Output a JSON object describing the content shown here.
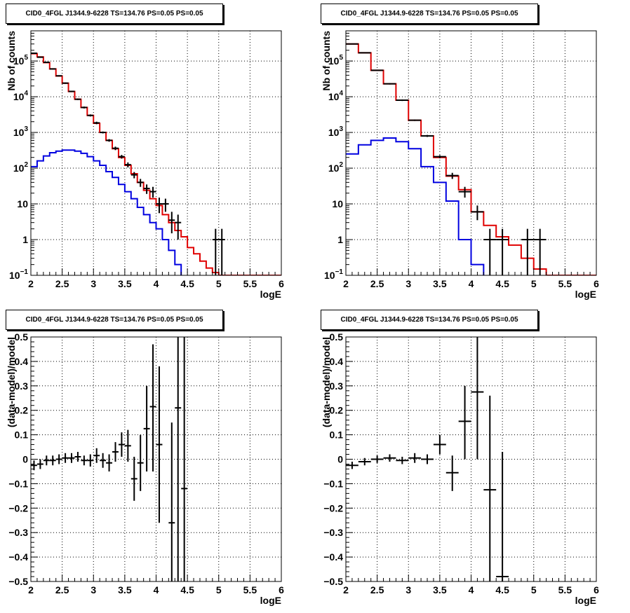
{
  "chart_data": [
    {
      "type": "line",
      "title": "CID0_4FGL J1344.9-6228 TS=134.76 PS=0.05 PS=0.05",
      "xlabel": "logE",
      "ylabel": "Nb of counts",
      "xlim": [
        2,
        6
      ],
      "ylim": [
        0.1,
        700000
      ],
      "ylog": true,
      "grid": true,
      "x_ticks": [
        "2",
        "2.5",
        "3",
        "3.5",
        "4",
        "4.5",
        "5",
        "5.5",
        "6"
      ],
      "y_ticks": [
        {
          "v": 0.1,
          "base": "10",
          "exp": "−1"
        },
        {
          "v": 1,
          "label": "1"
        },
        {
          "v": 10,
          "label": "10"
        },
        {
          "v": 100,
          "base": "10",
          "exp": "2"
        },
        {
          "v": 1000,
          "base": "10",
          "exp": "3"
        },
        {
          "v": 10000,
          "base": "10",
          "exp": "4"
        },
        {
          "v": 100000,
          "base": "10",
          "exp": "5"
        }
      ],
      "bin_edges": [
        2.0,
        2.1,
        2.2,
        2.3,
        2.4,
        2.5,
        2.6,
        2.7,
        2.8,
        2.9,
        3.0,
        3.1,
        3.2,
        3.3,
        3.4,
        3.5,
        3.6,
        3.7,
        3.8,
        3.9,
        4.0,
        4.1,
        4.2,
        4.3,
        4.4,
        4.5,
        4.6,
        4.7,
        4.8,
        4.9,
        5.0,
        5.1,
        5.2,
        5.3,
        5.4,
        5.5,
        5.6,
        5.7,
        5.8,
        5.9,
        6.0
      ],
      "series": [
        {
          "color": "#e00000",
          "style": "step",
          "values": [
            160000,
            130000,
            90000,
            60000,
            38000,
            24000,
            14000,
            8500,
            5000,
            3000,
            1800,
            1000,
            600,
            350,
            200,
            120,
            70,
            40,
            24,
            14,
            9,
            5,
            3,
            1.8,
            1.2,
            0.6,
            0.4,
            0.25,
            0.16,
            0.12,
            0.1,
            0.1,
            0.1,
            0.1,
            0.1,
            0.1,
            0.1,
            0.1,
            0.1,
            0.1
          ]
        },
        {
          "color": "#0000e0",
          "style": "step",
          "values": [
            110,
            160,
            220,
            270,
            300,
            320,
            320,
            300,
            260,
            210,
            160,
            120,
            80,
            55,
            35,
            22,
            14,
            8,
            5,
            3,
            2,
            1,
            0.5,
            0.2,
            0.08,
            0.05,
            0.05,
            0.05,
            0.05,
            0.05,
            0.05,
            0.05,
            0.05,
            0.05,
            0.05,
            0.05,
            0.05,
            0.05,
            0.05,
            0.05
          ]
        },
        {
          "color": "#000000",
          "style": "points",
          "points": [
            {
              "x": 2.05,
              "y": 165000,
              "lo": 160000,
              "hi": 170000
            },
            {
              "x": 2.15,
              "y": 128000,
              "lo": 124000,
              "hi": 132000
            },
            {
              "x": 2.25,
              "y": 92000,
              "lo": 89000,
              "hi": 95000
            },
            {
              "x": 2.35,
              "y": 60000,
              "lo": 58000,
              "hi": 62000
            },
            {
              "x": 2.45,
              "y": 38500,
              "lo": 37000,
              "hi": 40000
            },
            {
              "x": 2.55,
              "y": 24000,
              "lo": 23000,
              "hi": 25000
            },
            {
              "x": 2.65,
              "y": 14100,
              "lo": 13500,
              "hi": 14700
            },
            {
              "x": 2.75,
              "y": 8500,
              "lo": 8100,
              "hi": 8900
            },
            {
              "x": 2.85,
              "y": 5000,
              "lo": 4700,
              "hi": 5300
            },
            {
              "x": 2.95,
              "y": 3000,
              "lo": 2800,
              "hi": 3200
            },
            {
              "x": 3.05,
              "y": 1850,
              "lo": 1700,
              "hi": 2000
            },
            {
              "x": 3.15,
              "y": 1000,
              "lo": 940,
              "hi": 1060
            },
            {
              "x": 3.25,
              "y": 600,
              "lo": 550,
              "hi": 650
            },
            {
              "x": 3.35,
              "y": 360,
              "lo": 320,
              "hi": 400
            },
            {
              "x": 3.45,
              "y": 210,
              "lo": 185,
              "hi": 235
            },
            {
              "x": 3.55,
              "y": 125,
              "lo": 105,
              "hi": 145
            },
            {
              "x": 3.65,
              "y": 65,
              "lo": 52,
              "hi": 78
            },
            {
              "x": 3.75,
              "y": 40,
              "lo": 30,
              "hi": 50
            },
            {
              "x": 3.85,
              "y": 27,
              "lo": 19,
              "hi": 35
            },
            {
              "x": 3.95,
              "y": 22,
              "lo": 15,
              "hi": 30
            },
            {
              "x": 4.05,
              "y": 10,
              "lo": 5.5,
              "hi": 15
            },
            {
              "x": 4.15,
              "y": 10,
              "lo": 6,
              "hi": 14
            },
            {
              "x": 4.25,
              "y": 3.5,
              "lo": 1.5,
              "hi": 6
            },
            {
              "x": 4.35,
              "y": 3,
              "lo": 1,
              "hi": 5
            },
            {
              "x": 4.95,
              "y": 1,
              "lo": 0.1,
              "hi": 2
            },
            {
              "x": 5.05,
              "y": 1,
              "lo": 0.1,
              "hi": 2
            }
          ]
        }
      ]
    },
    {
      "type": "line",
      "title": "CID0_4FGL J1344.9-6228 TS=134.76 PS=0.05 PS=0.05",
      "xlabel": "logE",
      "ylabel": "Nb of counts",
      "xlim": [
        2,
        6
      ],
      "ylim": [
        0.1,
        700000
      ],
      "ylog": true,
      "grid": true,
      "x_ticks": [
        "2",
        "2.5",
        "3",
        "3.5",
        "4",
        "4.5",
        "5",
        "5.5",
        "6"
      ],
      "y_ticks": [
        {
          "v": 0.1,
          "base": "10",
          "exp": "−1"
        },
        {
          "v": 1,
          "label": "1"
        },
        {
          "v": 10,
          "label": "10"
        },
        {
          "v": 100,
          "base": "10",
          "exp": "2"
        },
        {
          "v": 1000,
          "base": "10",
          "exp": "3"
        },
        {
          "v": 10000,
          "base": "10",
          "exp": "4"
        },
        {
          "v": 100000,
          "base": "10",
          "exp": "5"
        }
      ],
      "bin_edges": [
        2.0,
        2.2,
        2.4,
        2.6,
        2.8,
        3.0,
        3.2,
        3.4,
        3.6,
        3.8,
        4.0,
        4.2,
        4.4,
        4.6,
        4.8,
        5.0,
        5.2,
        5.4,
        5.6,
        5.8,
        6.0
      ],
      "series": [
        {
          "color": "#e00000",
          "style": "step",
          "values": [
            300000,
            170000,
            55000,
            23000,
            8000,
            2200,
            800,
            200,
            60,
            25,
            6,
            2.5,
            1.2,
            0.7,
            0.3,
            0.15,
            0.1,
            0.1,
            0.1,
            0.1
          ]
        },
        {
          "color": "#0000e0",
          "style": "step",
          "values": [
            250,
            450,
            600,
            700,
            550,
            350,
            110,
            40,
            12,
            1,
            0.2,
            0.05,
            0.05,
            0.05,
            0.05,
            0.05,
            0.05,
            0.05,
            0.05,
            0.05
          ]
        },
        {
          "color": "#000000",
          "style": "points",
          "points": [
            {
              "x": 2.1,
              "y": 300000,
              "lo": 290000,
              "hi": 310000
            },
            {
              "x": 2.3,
              "y": 170000,
              "lo": 165000,
              "hi": 175000
            },
            {
              "x": 2.5,
              "y": 55000,
              "lo": 53000,
              "hi": 57000
            },
            {
              "x": 2.7,
              "y": 23000,
              "lo": 22000,
              "hi": 24000
            },
            {
              "x": 2.9,
              "y": 8000,
              "lo": 7600,
              "hi": 8400
            },
            {
              "x": 3.1,
              "y": 2200,
              "lo": 2100,
              "hi": 2300
            },
            {
              "x": 3.3,
              "y": 800,
              "lo": 750,
              "hi": 850
            },
            {
              "x": 3.5,
              "y": 210,
              "lo": 190,
              "hi": 230
            },
            {
              "x": 3.7,
              "y": 62,
              "lo": 50,
              "hi": 74
            },
            {
              "x": 3.9,
              "y": 22,
              "lo": 15,
              "hi": 30
            },
            {
              "x": 4.1,
              "y": 6,
              "lo": 3.5,
              "hi": 9
            },
            {
              "x": 4.3,
              "y": 1,
              "lo": 0.1,
              "hi": 2
            },
            {
              "x": 4.5,
              "y": 1,
              "lo": 0.1,
              "hi": 2
            },
            {
              "x": 4.9,
              "y": 1,
              "lo": 0.1,
              "hi": 2
            },
            {
              "x": 5.1,
              "y": 1,
              "lo": 0.1,
              "hi": 2
            }
          ]
        }
      ]
    },
    {
      "type": "scatter",
      "title": "CID0_4FGL J1344.9-6228 TS=134.76 PS=0.05 PS=0.05",
      "xlabel": "logE",
      "ylabel": "(data-model)/model",
      "xlim": [
        2,
        6
      ],
      "ylim": [
        -0.5,
        0.5
      ],
      "ylog": false,
      "grid": true,
      "x_ticks": [
        "2",
        "2.5",
        "3",
        "3.5",
        "4",
        "4.5",
        "5",
        "5.5",
        "6"
      ],
      "y_ticks": [
        {
          "v": -0.5,
          "label": "−0.5"
        },
        {
          "v": -0.4,
          "label": "−0.4"
        },
        {
          "v": -0.3,
          "label": "−0.3"
        },
        {
          "v": -0.2,
          "label": "−0.2"
        },
        {
          "v": -0.1,
          "label": "−0.1"
        },
        {
          "v": 0,
          "label": "0"
        },
        {
          "v": 0.1,
          "label": "0.1"
        },
        {
          "v": 0.2,
          "label": "0.2"
        },
        {
          "v": 0.3,
          "label": "0.3"
        },
        {
          "v": 0.4,
          "label": "0.4"
        },
        {
          "v": 0.5,
          "label": "0.5"
        }
      ],
      "half_width": 0.05,
      "series": [
        {
          "color": "#000000",
          "style": "points",
          "points": [
            {
              "x": 2.05,
              "y": -0.025,
              "lo": -0.045,
              "hi": -0.005
            },
            {
              "x": 2.15,
              "y": -0.02,
              "lo": -0.04,
              "hi": 0.0
            },
            {
              "x": 2.25,
              "y": -0.005,
              "lo": -0.025,
              "hi": 0.015
            },
            {
              "x": 2.35,
              "y": -0.005,
              "lo": -0.025,
              "hi": 0.015
            },
            {
              "x": 2.45,
              "y": 0.0,
              "lo": -0.02,
              "hi": 0.02
            },
            {
              "x": 2.55,
              "y": 0.005,
              "lo": -0.015,
              "hi": 0.025
            },
            {
              "x": 2.65,
              "y": 0.005,
              "lo": -0.015,
              "hi": 0.025
            },
            {
              "x": 2.75,
              "y": 0.01,
              "lo": -0.01,
              "hi": 0.03
            },
            {
              "x": 2.85,
              "y": -0.005,
              "lo": -0.025,
              "hi": 0.015
            },
            {
              "x": 2.95,
              "y": -0.005,
              "lo": -0.03,
              "hi": 0.02
            },
            {
              "x": 3.05,
              "y": 0.015,
              "lo": -0.015,
              "hi": 0.045
            },
            {
              "x": 3.15,
              "y": -0.005,
              "lo": -0.035,
              "hi": 0.025
            },
            {
              "x": 3.25,
              "y": -0.015,
              "lo": -0.05,
              "hi": 0.02
            },
            {
              "x": 3.35,
              "y": 0.03,
              "lo": -0.01,
              "hi": 0.07
            },
            {
              "x": 3.45,
              "y": 0.06,
              "lo": 0.01,
              "hi": 0.11
            },
            {
              "x": 3.55,
              "y": 0.055,
              "lo": -0.01,
              "hi": 0.12
            },
            {
              "x": 3.65,
              "y": -0.08,
              "lo": -0.17,
              "hi": 0.01
            },
            {
              "x": 3.75,
              "y": -0.015,
              "lo": -0.13,
              "hi": 0.1
            },
            {
              "x": 3.85,
              "y": 0.125,
              "lo": -0.05,
              "hi": 0.3
            },
            {
              "x": 3.95,
              "y": 0.215,
              "lo": -0.05,
              "hi": 0.47
            },
            {
              "x": 4.05,
              "y": 0.06,
              "lo": -0.26,
              "hi": 0.38
            },
            {
              "x": 4.25,
              "y": -0.26,
              "lo": -0.55,
              "hi": 0.15
            },
            {
              "x": 4.35,
              "y": 0.21,
              "lo": -0.55,
              "hi": 0.55
            },
            {
              "x": 4.45,
              "y": -0.12,
              "lo": -0.55,
              "hi": 0.55
            }
          ]
        }
      ]
    },
    {
      "type": "scatter",
      "title": "CID0_4FGL J1344.9-6228 TS=134.76 PS=0.05 PS=0.05",
      "xlabel": "logE",
      "ylabel": "(data-model)/model",
      "xlim": [
        2,
        6
      ],
      "ylim": [
        -0.5,
        0.5
      ],
      "ylog": false,
      "grid": true,
      "x_ticks": [
        "2",
        "2.5",
        "3",
        "3.5",
        "4",
        "4.5",
        "5",
        "5.5",
        "6"
      ],
      "y_ticks": [
        {
          "v": -0.5,
          "label": "−0.5"
        },
        {
          "v": -0.4,
          "label": "−0.4"
        },
        {
          "v": -0.3,
          "label": "−0.3"
        },
        {
          "v": -0.2,
          "label": "−0.2"
        },
        {
          "v": -0.1,
          "label": "−0.1"
        },
        {
          "v": 0,
          "label": "0"
        },
        {
          "v": 0.1,
          "label": "0.1"
        },
        {
          "v": 0.2,
          "label": "0.2"
        },
        {
          "v": 0.3,
          "label": "0.3"
        },
        {
          "v": 0.4,
          "label": "0.4"
        },
        {
          "v": 0.5,
          "label": "0.5"
        }
      ],
      "half_width": 0.1,
      "series": [
        {
          "color": "#000000",
          "style": "points",
          "points": [
            {
              "x": 2.1,
              "y": -0.025,
              "lo": -0.04,
              "hi": -0.01
            },
            {
              "x": 2.3,
              "y": -0.01,
              "lo": -0.025,
              "hi": 0.005
            },
            {
              "x": 2.5,
              "y": 0.0,
              "lo": -0.015,
              "hi": 0.015
            },
            {
              "x": 2.7,
              "y": 0.005,
              "lo": -0.01,
              "hi": 0.02
            },
            {
              "x": 2.9,
              "y": -0.005,
              "lo": -0.02,
              "hi": 0.01
            },
            {
              "x": 3.1,
              "y": 0.005,
              "lo": -0.015,
              "hi": 0.025
            },
            {
              "x": 3.3,
              "y": 0.0,
              "lo": -0.02,
              "hi": 0.02
            },
            {
              "x": 3.5,
              "y": 0.06,
              "lo": 0.02,
              "hi": 0.1
            },
            {
              "x": 3.7,
              "y": -0.055,
              "lo": -0.13,
              "hi": 0.015
            },
            {
              "x": 3.9,
              "y": 0.155,
              "lo": 0.0,
              "hi": 0.3
            },
            {
              "x": 4.1,
              "y": 0.275,
              "lo": 0.0,
              "hi": 0.55
            },
            {
              "x": 4.3,
              "y": -0.125,
              "lo": -0.55,
              "hi": 0.26
            },
            {
              "x": 4.5,
              "y": -0.48,
              "lo": -0.55,
              "hi": 0.03
            }
          ]
        }
      ]
    }
  ]
}
